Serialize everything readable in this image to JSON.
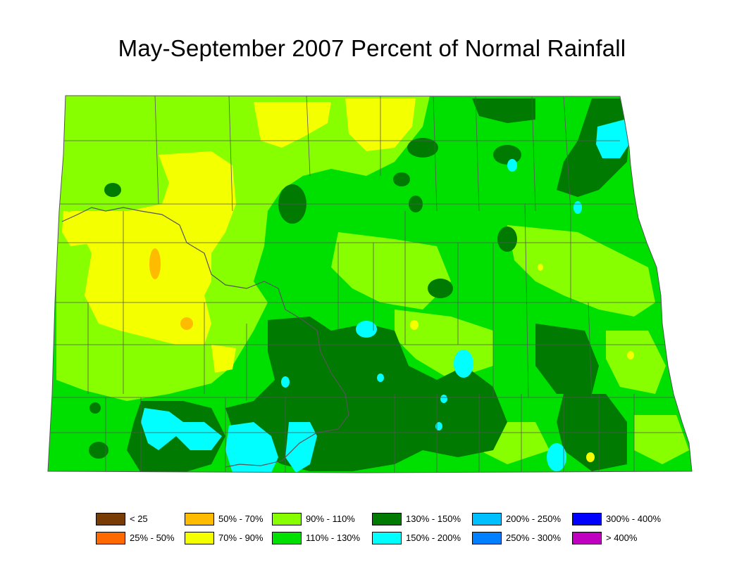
{
  "title": "May-September 2007 Percent of Normal Rainfall",
  "legend": [
    {
      "label": "< 25",
      "color": "#7a3c05"
    },
    {
      "label": "25% - 50%",
      "color": "#ff6a00"
    },
    {
      "label": "50% - 70%",
      "color": "#ffbb00"
    },
    {
      "label": "70% - 90%",
      "color": "#f4ff00"
    },
    {
      "label": "90% - 110%",
      "color": "#88ff00"
    },
    {
      "label": "110% - 130%",
      "color": "#00e000"
    },
    {
      "label": "130% - 150%",
      "color": "#007a00"
    },
    {
      "label": "150% - 200%",
      "color": "#00ffff"
    },
    {
      "label": "200% - 250%",
      "color": "#00bfff"
    },
    {
      "label": "250% - 300%",
      "color": "#0080ff"
    },
    {
      "label": "300% - 400%",
      "color": "#0000ff"
    },
    {
      "label": "> 400%",
      "color": "#c000c0"
    }
  ],
  "colors": {
    "boundary": "#555555",
    "background": "#ffffff"
  }
}
